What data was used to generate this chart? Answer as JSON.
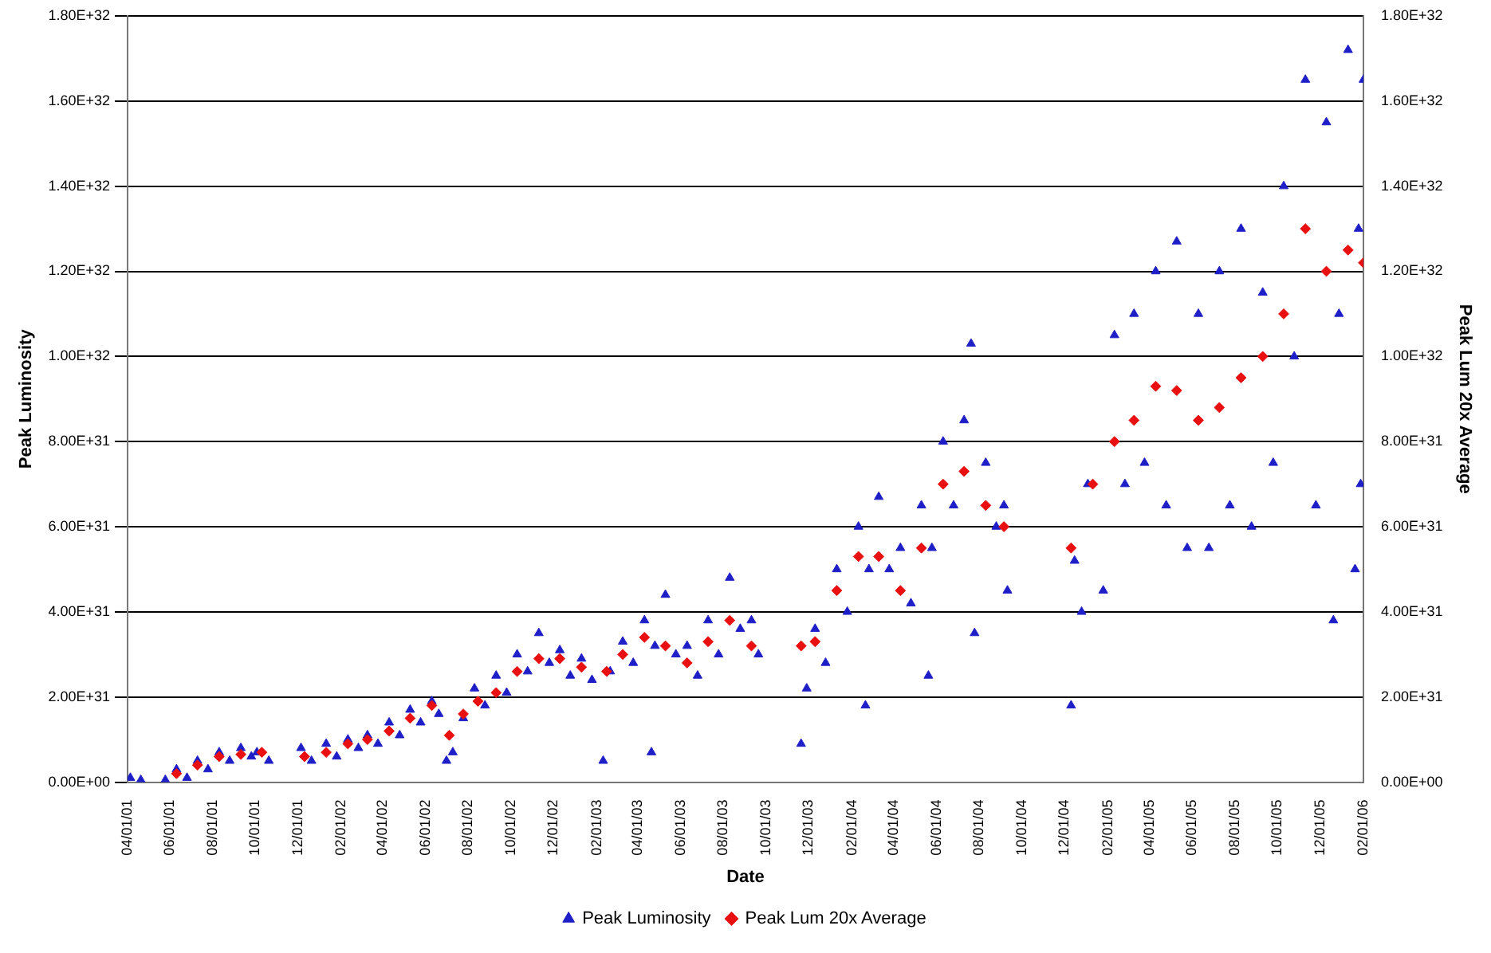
{
  "chart_data": {
    "type": "scatter",
    "xlabel": "Date",
    "ylabel": "Peak Luminosity",
    "y2label": "Peak Lum 20x Average",
    "xlim": [
      "2001-04-01",
      "2006-02-01"
    ],
    "xticks": [
      {
        "value": "2001-04-01",
        "label": "04/01/01"
      },
      {
        "value": "2001-06-01",
        "label": "06/01/01"
      },
      {
        "value": "2001-08-01",
        "label": "08/01/01"
      },
      {
        "value": "2001-10-01",
        "label": "10/01/01"
      },
      {
        "value": "2001-12-01",
        "label": "12/01/01"
      },
      {
        "value": "2002-02-01",
        "label": "02/01/02"
      },
      {
        "value": "2002-04-01",
        "label": "04/01/02"
      },
      {
        "value": "2002-06-01",
        "label": "06/01/02"
      },
      {
        "value": "2002-08-01",
        "label": "08/01/02"
      },
      {
        "value": "2002-10-01",
        "label": "10/01/02"
      },
      {
        "value": "2002-12-01",
        "label": "12/01/02"
      },
      {
        "value": "2003-02-01",
        "label": "02/01/03"
      },
      {
        "value": "2003-04-01",
        "label": "04/01/03"
      },
      {
        "value": "2003-06-01",
        "label": "06/01/03"
      },
      {
        "value": "2003-08-01",
        "label": "08/01/03"
      },
      {
        "value": "2003-10-01",
        "label": "10/01/03"
      },
      {
        "value": "2003-12-01",
        "label": "12/01/03"
      },
      {
        "value": "2004-02-01",
        "label": "02/01/04"
      },
      {
        "value": "2004-04-01",
        "label": "04/01/04"
      },
      {
        "value": "2004-06-01",
        "label": "06/01/04"
      },
      {
        "value": "2004-08-01",
        "label": "08/01/04"
      },
      {
        "value": "2004-10-01",
        "label": "10/01/04"
      },
      {
        "value": "2004-12-01",
        "label": "12/01/04"
      },
      {
        "value": "2005-02-01",
        "label": "02/01/05"
      },
      {
        "value": "2005-04-01",
        "label": "04/01/05"
      },
      {
        "value": "2005-06-01",
        "label": "06/01/05"
      },
      {
        "value": "2005-08-01",
        "label": "08/01/05"
      },
      {
        "value": "2005-10-01",
        "label": "10/01/05"
      },
      {
        "value": "2005-12-01",
        "label": "12/01/05"
      },
      {
        "value": "2006-02-01",
        "label": "02/01/06"
      }
    ],
    "ylim": [
      0,
      1.8e+32
    ],
    "yticks": [
      {
        "value": 0,
        "label": "0.00E+00"
      },
      {
        "value": 2e+31,
        "label": "2.00E+31"
      },
      {
        "value": 4e+31,
        "label": "4.00E+31"
      },
      {
        "value": 6e+31,
        "label": "6.00E+31"
      },
      {
        "value": 8e+31,
        "label": "8.00E+31"
      },
      {
        "value": 1e+32,
        "label": "1.00E+32"
      },
      {
        "value": 1.2e+32,
        "label": "1.20E+32"
      },
      {
        "value": 1.4e+32,
        "label": "1.40E+32"
      },
      {
        "value": 1.6e+32,
        "label": "1.60E+32"
      },
      {
        "value": 1.8e+32,
        "label": "1.80E+32"
      }
    ],
    "y2lim": [
      0,
      1.8e+32
    ],
    "y2ticks": [
      {
        "value": 0,
        "label": "0.00E+00"
      },
      {
        "value": 2e+31,
        "label": "2.00E+31"
      },
      {
        "value": 4e+31,
        "label": "4.00E+31"
      },
      {
        "value": 6e+31,
        "label": "6.00E+31"
      },
      {
        "value": 8e+31,
        "label": "8.00E+31"
      },
      {
        "value": 1e+32,
        "label": "1.00E+32"
      },
      {
        "value": 1.2e+32,
        "label": "1.20E+32"
      },
      {
        "value": 1.4e+32,
        "label": "1.40E+32"
      },
      {
        "value": 1.6e+32,
        "label": "1.60E+32"
      },
      {
        "value": 1.8e+32,
        "label": "1.80E+32"
      }
    ],
    "grid": "y",
    "legend": "bottom",
    "series": [
      {
        "name": "Peak Luminosity",
        "color": "#1f1fc8",
        "marker": "triangle",
        "x": [
          "2001-04-05",
          "2001-04-20",
          "2001-05-25",
          "2001-06-10",
          "2001-06-25",
          "2001-07-10",
          "2001-07-25",
          "2001-08-10",
          "2001-08-25",
          "2001-09-10",
          "2001-09-25",
          "2001-10-03",
          "2001-10-20",
          "2001-12-05",
          "2001-12-20",
          "2002-01-10",
          "2002-01-25",
          "2002-02-10",
          "2002-02-25",
          "2002-03-10",
          "2002-03-25",
          "2002-04-10",
          "2002-04-25",
          "2002-05-10",
          "2002-05-25",
          "2002-06-10",
          "2002-06-20",
          "2002-07-01",
          "2002-07-10",
          "2002-07-25",
          "2002-08-10",
          "2002-08-25",
          "2002-09-10",
          "2002-09-25",
          "2002-10-10",
          "2002-10-25",
          "2002-11-10",
          "2002-11-25",
          "2002-12-10",
          "2002-12-25",
          "2003-01-10",
          "2003-01-25",
          "2003-02-10",
          "2003-02-20",
          "2003-03-10",
          "2003-03-25",
          "2003-04-10",
          "2003-04-20",
          "2003-04-25",
          "2003-05-10",
          "2003-05-25",
          "2003-06-10",
          "2003-06-25",
          "2003-07-10",
          "2003-07-25",
          "2003-08-10",
          "2003-08-25",
          "2003-09-10",
          "2003-09-20",
          "2003-11-20",
          "2003-11-28",
          "2003-12-10",
          "2003-12-25",
          "2004-01-10",
          "2004-01-25",
          "2004-02-10",
          "2004-02-20",
          "2004-02-25",
          "2004-03-10",
          "2004-03-25",
          "2004-04-10",
          "2004-04-25",
          "2004-05-10",
          "2004-05-20",
          "2004-05-25",
          "2004-06-10",
          "2004-06-25",
          "2004-07-10",
          "2004-07-20",
          "2004-07-25",
          "2004-08-10",
          "2004-08-25",
          "2004-09-05",
          "2004-09-10",
          "2004-12-10",
          "2004-12-15",
          "2004-12-25",
          "2005-01-03",
          "2005-01-25",
          "2005-02-10",
          "2005-02-25",
          "2005-03-10",
          "2005-03-25",
          "2005-04-10",
          "2005-04-25",
          "2005-05-10",
          "2005-05-25",
          "2005-06-10",
          "2005-06-25",
          "2005-07-10",
          "2005-07-25",
          "2005-08-10",
          "2005-08-25",
          "2005-09-10",
          "2005-09-25",
          "2005-10-10",
          "2005-10-25",
          "2005-11-10",
          "2005-11-25",
          "2005-12-10",
          "2005-12-20",
          "2005-12-28",
          "2006-01-10",
          "2006-01-20",
          "2006-01-25",
          "2006-01-28",
          "2006-02-01"
        ],
        "values": [
          1e+30,
          5e+29,
          5e+29,
          3e+30,
          1e+30,
          5e+30,
          3e+30,
          7e+30,
          5e+30,
          8e+30,
          6e+30,
          7e+30,
          5e+30,
          8e+30,
          5e+30,
          9e+30,
          6e+30,
          1e+31,
          8e+30,
          1.1e+31,
          9e+30,
          1.4e+31,
          1.1e+31,
          1.7e+31,
          1.4e+31,
          1.9e+31,
          1.6e+31,
          5e+30,
          7e+30,
          1.5e+31,
          2.2e+31,
          1.8e+31,
          2.5e+31,
          2.1e+31,
          3e+31,
          2.6e+31,
          3.5e+31,
          2.8e+31,
          3.1e+31,
          2.5e+31,
          2.9e+31,
          2.4e+31,
          5e+30,
          2.6e+31,
          3.3e+31,
          2.8e+31,
          3.8e+31,
          7e+30,
          3.2e+31,
          4.4e+31,
          3e+31,
          3.2e+31,
          2.5e+31,
          3.8e+31,
          3e+31,
          4.8e+31,
          3.6e+31,
          3.8e+31,
          3e+31,
          9e+30,
          2.2e+31,
          3.6e+31,
          2.8e+31,
          5e+31,
          4e+31,
          6e+31,
          1.8e+31,
          5e+31,
          6.7e+31,
          5e+31,
          5.5e+31,
          4.2e+31,
          6.5e+31,
          2.5e+31,
          5.5e+31,
          8e+31,
          6.5e+31,
          8.5e+31,
          1.03e+32,
          3.5e+31,
          7.5e+31,
          6e+31,
          6.5e+31,
          4.5e+31,
          1.8e+31,
          5.2e+31,
          4e+31,
          7e+31,
          4.5e+31,
          1.05e+32,
          7e+31,
          1.1e+32,
          7.5e+31,
          1.2e+32,
          6.5e+31,
          1.27e+32,
          5.5e+31,
          1.1e+32,
          5.5e+31,
          1.2e+32,
          6.5e+31,
          1.3e+32,
          6e+31,
          1.15e+32,
          7.5e+31,
          1.4e+32,
          1e+32,
          1.65e+32,
          6.5e+31,
          1.55e+32,
          3.8e+31,
          1.1e+32,
          1.72e+32,
          5e+31,
          1.3e+32,
          7e+31,
          1.65e+32
        ]
      },
      {
        "name": "Peak Lum 20x Average",
        "color": "#e81010",
        "marker": "diamond",
        "axis": "y2",
        "x": [
          "2001-06-10",
          "2001-07-10",
          "2001-08-10",
          "2001-09-10",
          "2001-10-10",
          "2001-12-10",
          "2002-01-10",
          "2002-02-10",
          "2002-03-10",
          "2002-04-10",
          "2002-05-10",
          "2002-06-10",
          "2002-07-05",
          "2002-07-25",
          "2002-08-15",
          "2002-09-10",
          "2002-10-10",
          "2002-11-10",
          "2002-12-10",
          "2003-01-10",
          "2003-02-15",
          "2003-03-10",
          "2003-04-10",
          "2003-05-10",
          "2003-06-10",
          "2003-07-10",
          "2003-08-10",
          "2003-09-10",
          "2003-11-20",
          "2003-12-10",
          "2004-01-10",
          "2004-02-10",
          "2004-03-10",
          "2004-04-10",
          "2004-05-10",
          "2004-06-10",
          "2004-07-10",
          "2004-08-10",
          "2004-09-05",
          "2004-12-10",
          "2005-01-10",
          "2005-02-10",
          "2005-03-10",
          "2005-04-10",
          "2005-05-10",
          "2005-06-10",
          "2005-07-10",
          "2005-08-10",
          "2005-09-10",
          "2005-10-10",
          "2005-11-10",
          "2005-12-10",
          "2006-01-10",
          "2006-02-01"
        ],
        "values": [
          2e+30,
          4e+30,
          6e+30,
          6.5e+30,
          7e+30,
          6e+30,
          7e+30,
          9e+30,
          1e+31,
          1.2e+31,
          1.5e+31,
          1.8e+31,
          1.1e+31,
          1.6e+31,
          1.9e+31,
          2.1e+31,
          2.6e+31,
          2.9e+31,
          2.9e+31,
          2.7e+31,
          2.6e+31,
          3e+31,
          3.4e+31,
          3.2e+31,
          2.8e+31,
          3.3e+31,
          3.8e+31,
          3.2e+31,
          3.2e+31,
          3.3e+31,
          4.5e+31,
          5.3e+31,
          5.3e+31,
          4.5e+31,
          5.5e+31,
          7e+31,
          7.3e+31,
          6.5e+31,
          6e+31,
          5.5e+31,
          7e+31,
          8e+31,
          8.5e+31,
          9.3e+31,
          9.2e+31,
          8.5e+31,
          8.8e+31,
          9.5e+31,
          1e+32,
          1.1e+32,
          1.3e+32,
          1.2e+32,
          1.25e+32,
          1.22e+32
        ]
      }
    ]
  }
}
